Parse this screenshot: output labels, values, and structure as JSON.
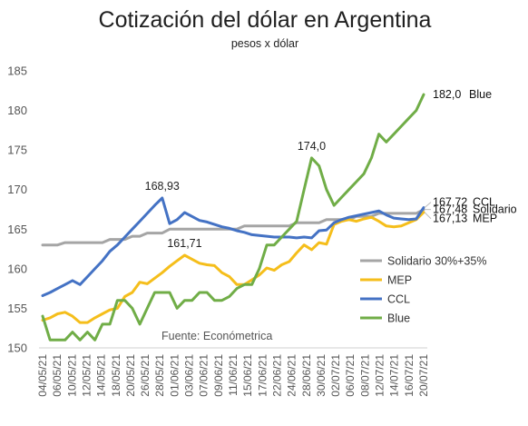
{
  "chart_data": {
    "type": "line",
    "title": "Cotización del dólar en Argentina",
    "subtitle": "pesos x dólar",
    "source": "Fuente: Económetrica",
    "ylim": [
      150,
      185
    ],
    "yticks": [
      150,
      155,
      160,
      165,
      170,
      175,
      180,
      185
    ],
    "grid": false,
    "legend_position": "center-right",
    "x": [
      "04/05/21",
      "05/05/21",
      "06/05/21",
      "07/05/21",
      "10/05/21",
      "11/05/21",
      "12/05/21",
      "13/05/21",
      "14/05/21",
      "17/05/21",
      "18/05/21",
      "19/05/21",
      "20/05/21",
      "21/05/21",
      "26/05/21",
      "27/05/21",
      "28/05/21",
      "31/05/21",
      "01/06/21",
      "02/06/21",
      "03/06/21",
      "04/06/21",
      "07/06/21",
      "08/06/21",
      "09/06/21",
      "10/06/21",
      "11/06/21",
      "14/06/21",
      "15/06/21",
      "16/06/21",
      "17/06/21",
      "18/06/21",
      "22/06/21",
      "23/06/21",
      "24/06/21",
      "25/06/21",
      "28/06/21",
      "29/06/21",
      "30/06/21",
      "01/07/21",
      "02/07/21",
      "05/07/21",
      "06/07/21",
      "07/07/21",
      "08/07/21",
      "12/07/21",
      "13/07/21",
      "14/07/21",
      "15/07/21",
      "16/07/21",
      "19/07/21",
      "20/07/21"
    ],
    "x_tick_labels": [
      "04/05/21",
      "06/05/21",
      "10/05/21",
      "12/05/21",
      "14/05/21",
      "18/05/21",
      "20/05/21",
      "26/05/21",
      "28/05/21",
      "01/06/21",
      "03/06/21",
      "07/06/21",
      "09/06/21",
      "11/06/21",
      "15/06/21",
      "17/06/21",
      "22/06/21",
      "24/06/21",
      "28/06/21",
      "30/06/21",
      "02/07/21",
      "06/07/21",
      "08/07/21",
      "12/07/21",
      "14/07/21",
      "16/07/21",
      "20/07/21"
    ],
    "series": [
      {
        "name": "Solidario 30%+35%",
        "color": "#a5a5a5",
        "values": [
          163.0,
          163.0,
          163.0,
          163.3,
          163.3,
          163.3,
          163.3,
          163.3,
          163.3,
          163.7,
          163.7,
          163.7,
          164.1,
          164.1,
          164.5,
          164.5,
          164.5,
          165.0,
          165.0,
          165.0,
          165.0,
          165.0,
          165.0,
          165.0,
          165.0,
          165.0,
          165.0,
          165.4,
          165.4,
          165.4,
          165.4,
          165.4,
          165.4,
          165.4,
          165.8,
          165.8,
          165.8,
          165.8,
          166.2,
          166.2,
          166.2,
          166.2,
          166.6,
          166.6,
          166.6,
          167.0,
          167.0,
          167.0,
          167.0,
          167.0,
          167.0,
          167.48
        ]
      },
      {
        "name": "MEP",
        "color": "#f5be1b",
        "values": [
          153.5,
          153.8,
          154.3,
          154.5,
          154.0,
          153.2,
          153.2,
          153.8,
          154.3,
          154.8,
          155.0,
          156.5,
          157.0,
          158.3,
          158.1,
          158.8,
          159.5,
          160.3,
          161.0,
          161.71,
          161.2,
          160.7,
          160.5,
          160.4,
          159.5,
          159.0,
          158.0,
          158.0,
          158.6,
          159.2,
          160.1,
          159.8,
          160.5,
          160.9,
          162.0,
          163.0,
          162.4,
          163.3,
          163.1,
          165.6,
          166.0,
          166.2,
          166.0,
          166.3,
          166.5,
          166.0,
          165.4,
          165.3,
          165.4,
          165.8,
          166.2,
          167.13
        ]
      },
      {
        "name": "CCL",
        "color": "#4472c4",
        "values": [
          156.6,
          157.0,
          157.5,
          158.0,
          158.5,
          158.0,
          159.0,
          160.0,
          161.0,
          162.2,
          163.0,
          164.0,
          165.0,
          166.0,
          167.0,
          168.0,
          168.93,
          165.7,
          166.2,
          167.1,
          166.6,
          166.1,
          165.9,
          165.6,
          165.3,
          165.1,
          164.8,
          164.6,
          164.3,
          164.2,
          164.1,
          164.0,
          164.0,
          164.0,
          163.9,
          164.0,
          163.9,
          164.8,
          164.9,
          165.8,
          166.2,
          166.5,
          166.7,
          166.9,
          167.1,
          167.3,
          166.8,
          166.4,
          166.3,
          166.2,
          166.3,
          167.72
        ]
      },
      {
        "name": "Blue",
        "color": "#70ad47",
        "values": [
          154.0,
          151.0,
          151.0,
          151.0,
          152.0,
          151.0,
          152.0,
          151.0,
          153.0,
          153.0,
          156.0,
          156.0,
          155.0,
          153.0,
          155.0,
          157.0,
          157.0,
          157.0,
          155.0,
          156.0,
          156.0,
          157.0,
          157.0,
          156.0,
          156.0,
          156.5,
          157.5,
          158.0,
          158.0,
          160.0,
          163.0,
          163.0,
          164.0,
          165.0,
          166.0,
          170.0,
          174.0,
          173.0,
          170.0,
          168.0,
          169.0,
          170.0,
          171.0,
          172.0,
          174.0,
          177.0,
          176.0,
          177.0,
          178.0,
          179.0,
          180.0,
          182.0
        ]
      }
    ],
    "annotations": [
      {
        "text": "168,93",
        "series": "CCL",
        "index": 16
      },
      {
        "text": "161,71",
        "series": "MEP",
        "index": 19
      },
      {
        "text": "174,0",
        "series": "Blue",
        "index": 36
      }
    ],
    "end_labels": [
      {
        "series": "Blue",
        "value": "182,0",
        "name": "Blue"
      },
      {
        "series": "CCL",
        "value": "167,72",
        "name": "CCL"
      },
      {
        "series": "Solidario 30%+35%",
        "value": "167,48",
        "name": "Solidario"
      },
      {
        "series": "MEP",
        "value": "167,13",
        "name": "MEP"
      }
    ]
  }
}
